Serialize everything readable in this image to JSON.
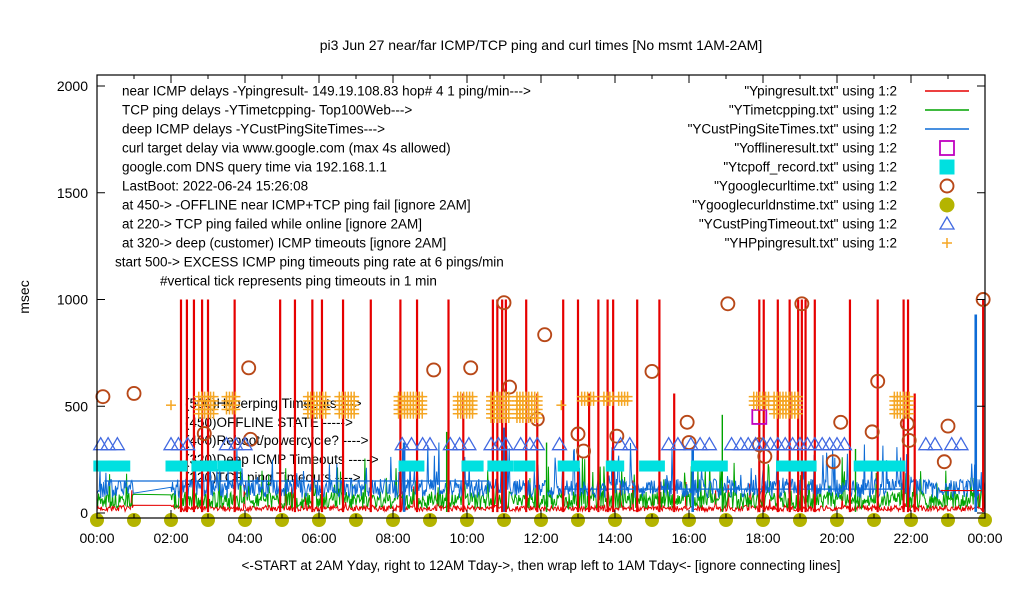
{
  "title": "pi3 Jun 27  near/far ICMP/TCP ping and curl times [No msmt 1AM-2AM]",
  "ylabel": "msec",
  "xlabel": "<-START at 2AM Yday, right to 12AM Tday->, then wrap left to 1AM Tday<- [ignore connecting lines]",
  "colors": {
    "red": "#e60000",
    "green": "#00a400",
    "blue": "#0d6bd6",
    "magenta": "#c000c0",
    "cyan": "#00e0e0",
    "darkorange": "#b84818",
    "olive": "#b4b400",
    "triangle_blue": "#4169e1",
    "plus_orange": "#f5a623",
    "axis": "#000000",
    "background": "#ffffff"
  },
  "chart_data": {
    "type": "line",
    "title": "pi3 Jun 27  near/far ICMP/TCP ping and curl times [No msmt 1AM-2AM]",
    "xlabel": "<-START at 2AM Yday, right to 12AM Tday->, then wrap left to 1AM Tday<- [ignore connecting lines]",
    "ylabel": "msec",
    "xlim_hours": [
      0,
      24
    ],
    "ylim": [
      0,
      2000
    ],
    "yticks": [
      0,
      500,
      1000,
      1500,
      2000
    ],
    "xtick_labels": [
      "00:00",
      "02:00",
      "04:00",
      "06:00",
      "08:00",
      "10:00",
      "12:00",
      "14:00",
      "16:00",
      "18:00",
      "20:00",
      "22:00",
      "00:00"
    ],
    "grid": false,
    "no_measurement_gap_hours": [
      1,
      2
    ],
    "key_rows": [
      {
        "left": "near ICMP delays -Ypingresult- 149.19.108.83 hop# 4 1 ping/min--->",
        "right": "\"Ypingresult.txt\" using 1:2",
        "marker": "red-line",
        "indent": 122
      },
      {
        "left": "TCP ping delays -YTimetcpping- Top100Web--->",
        "right": "\"YTimetcpping.txt\" using 1:2",
        "marker": "green-line",
        "indent": 122
      },
      {
        "left": "deep ICMP delays -YCustPingSiteTimes--->",
        "right": "\"YCustPingSiteTimes.txt\" using 1:2",
        "marker": "blue-line",
        "indent": 122
      },
      {
        "left": "curl target delay via www.google.com (max 4s allowed)",
        "right": "\"Yofflineresult.txt\" using 1:2",
        "marker": "magenta-open-square",
        "indent": 122
      },
      {
        "left": "google.com DNS query time via 192.168.1.1",
        "right": "\"Ytcpoff_record.txt\" using 1:2",
        "marker": "cyan-filled-square",
        "indent": 122
      },
      {
        "left": "LastBoot: 2022-06-24 15:26:08",
        "right": "\"Ygooglecurltime.txt\" using 1:2",
        "marker": "darkorange-open-circle",
        "indent": 122
      },
      {
        "left": "at 450-> -OFFLINE near ICMP+TCP ping fail [ignore 2AM]",
        "right": "\"Ygooglecurldnstime.txt\" using 1:2",
        "marker": "olive-filled-circle",
        "indent": 122
      },
      {
        "left": "at 220-> TCP ping failed while online [ignore 2AM]",
        "right": "\"YCustPingTimeout.txt\" using 1:2",
        "marker": "blue-open-triangle",
        "indent": 122
      },
      {
        "left": "at 320-> deep (customer) ICMP timeouts [ignore 2AM]",
        "right": "\"YHPpingresult.txt\" using 1:2",
        "marker": "orange-plus",
        "indent": 122
      },
      {
        "left": "start 500-> EXCESS ICMP ping timeouts ping rate at 6 pings/min",
        "right": "",
        "marker": "",
        "indent": 115
      },
      {
        "left": "#vertical tick represents ping timeouts in 1 min",
        "right": "",
        "marker": "",
        "indent": 160
      }
    ],
    "inplot_labels": [
      {
        "text": "(500)Hyperping Timeouts --->",
        "v": 510
      },
      {
        "text": "(450)OFFLINE STATE ----->",
        "v": 421
      },
      {
        "text": "(400)Reboot/powercycle? ---->",
        "v": 337
      },
      {
        "text": "(320)Deep ICMP Timeouts ----->",
        "v": 248
      },
      {
        "text": "(220)TCP ping Timeouts ---->",
        "v": 164
      }
    ],
    "series": {
      "near_icmp_red": {
        "label": "Ypingresult.txt",
        "style": "line",
        "color_key": "red",
        "baseline": {
          "mean": 22,
          "jitter": 14,
          "spike_prob": 0.04,
          "spike_max": 130,
          "seed": 7
        },
        "timeout_spikes": [
          [
            2.27,
            1000
          ],
          [
            2.43,
            1000
          ],
          [
            2.62,
            1000
          ],
          [
            2.84,
            1000
          ],
          [
            3.0,
            1000
          ],
          [
            3.72,
            1000
          ],
          [
            4.95,
            1000
          ],
          [
            5.35,
            1000
          ],
          [
            5.82,
            1000
          ],
          [
            6.08,
            1000
          ],
          [
            6.65,
            1000
          ],
          [
            7.4,
            1000
          ],
          [
            8.2,
            1000
          ],
          [
            8.65,
            1000
          ],
          [
            9.5,
            1000
          ],
          [
            9.9,
            560
          ],
          [
            10.7,
            1000
          ],
          [
            10.82,
            1000
          ],
          [
            10.95,
            1000
          ],
          [
            11.05,
            1000
          ],
          [
            11.6,
            1000
          ],
          [
            11.9,
            560
          ],
          [
            12.6,
            1000
          ],
          [
            13.0,
            1000
          ],
          [
            13.3,
            560
          ],
          [
            13.55,
            1000
          ],
          [
            13.8,
            1000
          ],
          [
            13.95,
            1000
          ],
          [
            14.6,
            1000
          ],
          [
            15.2,
            1000
          ],
          [
            15.6,
            560
          ],
          [
            17.9,
            1000
          ],
          [
            18.02,
            1000
          ],
          [
            18.4,
            1000
          ],
          [
            18.72,
            1000
          ],
          [
            18.95,
            1000
          ],
          [
            19.05,
            1000
          ],
          [
            19.15,
            1000
          ],
          [
            19.4,
            1000
          ],
          [
            20.35,
            1000
          ],
          [
            21.1,
            1000
          ],
          [
            21.8,
            1000
          ],
          [
            21.92,
            1000
          ],
          [
            22.1,
            560
          ],
          [
            23.95,
            1000
          ]
        ],
        "flat_segments": [
          [
            22.8,
            23.9,
            105
          ]
        ]
      },
      "tcp_ping_green": {
        "label": "YTimetcpping.txt",
        "style": "line",
        "color_key": "green",
        "baseline": {
          "mean": 60,
          "jitter": 40,
          "spike_prob": 0.1,
          "spike_max": 200,
          "seed": 13
        },
        "extra_spikes": [
          [
            5.35,
            400
          ],
          [
            9.45,
            380
          ],
          [
            12.15,
            330
          ],
          [
            16.9,
            460
          ],
          [
            20.5,
            300
          ]
        ]
      },
      "deep_icmp_blue": {
        "label": "YCustPingSiteTimes.txt",
        "style": "line",
        "color_key": "blue",
        "baseline": {
          "mean": 115,
          "jitter": 45,
          "spike_prob": 0.1,
          "spike_max": 180,
          "seed": 29
        },
        "flat_segments": [
          [
            0.2,
            10.6,
            150
          ],
          [
            12.6,
            21.9,
            112
          ]
        ],
        "extra_spikes": [
          [
            8.3,
            330
          ],
          [
            11.0,
            400
          ],
          [
            16.1,
            300
          ],
          [
            23.75,
            930
          ]
        ]
      },
      "curl_offline_magenta": {
        "label": "Yofflineresult.txt",
        "style": "open-square",
        "color_key": "magenta",
        "value": 450,
        "points": [
          [
            17.9,
            450
          ]
        ]
      },
      "tcp_offline_cyan": {
        "label": "Ytcpoff_record.txt",
        "style": "filled-square",
        "color_key": "cyan",
        "value": 220,
        "ranges": [
          [
            0.05,
            0.3
          ],
          [
            0.45,
            0.75
          ],
          [
            2.0,
            2.3
          ],
          [
            2.7,
            3.1
          ],
          [
            3.4,
            3.75
          ],
          [
            8.3,
            8.7
          ],
          [
            10.0,
            10.3
          ],
          [
            10.7,
            11.1
          ],
          [
            11.4,
            11.7
          ],
          [
            12.6,
            12.9
          ],
          [
            13.9,
            14.1
          ],
          [
            14.8,
            15.2
          ],
          [
            16.2,
            16.9
          ],
          [
            18.5,
            19.3
          ],
          [
            20.6,
            21.3
          ],
          [
            21.4,
            21.7
          ]
        ]
      },
      "curl_time_circles": {
        "label": "Ygooglecurltime.txt",
        "style": "open-circle",
        "color_key": "darkorange",
        "points": [
          [
            0.16,
            545
          ],
          [
            1.0,
            560
          ],
          [
            2.9,
            372
          ],
          [
            4.1,
            680
          ],
          [
            4.15,
            345
          ],
          [
            9.1,
            670
          ],
          [
            10.1,
            680
          ],
          [
            11.0,
            985
          ],
          [
            11.15,
            590
          ],
          [
            11.9,
            440
          ],
          [
            12.1,
            835
          ],
          [
            13.0,
            370
          ],
          [
            13.15,
            290
          ],
          [
            14.05,
            360
          ],
          [
            15.0,
            663
          ],
          [
            15.95,
            425
          ],
          [
            16.0,
            330
          ],
          [
            17.05,
            980
          ],
          [
            17.9,
            320
          ],
          [
            18.05,
            265
          ],
          [
            19.05,
            980
          ],
          [
            19.9,
            240
          ],
          [
            20.1,
            425
          ],
          [
            20.95,
            380
          ],
          [
            21.1,
            617
          ],
          [
            21.9,
            418
          ],
          [
            21.95,
            340
          ],
          [
            22.9,
            240
          ],
          [
            23.0,
            407
          ],
          [
            23.95,
            1000
          ]
        ]
      },
      "dns_time_olive": {
        "label": "Ygooglecurldnstime.txt",
        "style": "filled-circle",
        "color_key": "olive",
        "value": 0,
        "hours": [
          0,
          1,
          2,
          3,
          4,
          5,
          6,
          7,
          8,
          9,
          10,
          11,
          12,
          13,
          14,
          15,
          16,
          17,
          18,
          19,
          20,
          21,
          22,
          23,
          24
        ]
      },
      "cust_ping_timeout_triangles": {
        "label": "YCustPingTimeout.txt",
        "style": "open-triangle",
        "color_key": "triangle_blue",
        "value": 320,
        "times": [
          0.1,
          0.3,
          0.55,
          2.0,
          2.2,
          2.45,
          3.5,
          3.75,
          4.0,
          8.25,
          8.5,
          8.8,
          9.0,
          9.55,
          9.8,
          10.05,
          10.65,
          10.85,
          11.05,
          11.45,
          11.7,
          11.9,
          12.5,
          14.15,
          14.4,
          15.45,
          15.7,
          16.05,
          16.3,
          16.55,
          17.15,
          17.4,
          17.6,
          17.8,
          18.0,
          18.2,
          18.4,
          18.6,
          18.8,
          19.0,
          19.2,
          19.4,
          19.6,
          19.8,
          20.0,
          20.2,
          22.4,
          22.65,
          23.1,
          23.35
        ]
      },
      "hyperping_plus": {
        "label": "YHPpingresult.txt",
        "style": "plus",
        "color_key": "plus_orange",
        "value": 500,
        "clusters": [
          [
            2.0,
            2.05,
            1
          ],
          [
            2.75,
            3.15,
            5
          ],
          [
            3.5,
            3.8,
            4
          ],
          [
            5.7,
            6.2,
            5
          ],
          [
            6.55,
            7.0,
            5
          ],
          [
            8.15,
            8.85,
            5
          ],
          [
            9.75,
            10.2,
            5
          ],
          [
            10.65,
            11.15,
            6
          ],
          [
            11.35,
            11.95,
            6
          ],
          [
            12.55,
            12.6,
            1
          ],
          [
            13.1,
            13.45,
            2
          ],
          [
            13.7,
            13.95,
            2
          ],
          [
            14.1,
            14.35,
            2
          ],
          [
            17.75,
            18.15,
            3
          ],
          [
            18.3,
            19.0,
            5
          ],
          [
            21.55,
            21.95,
            5
          ]
        ]
      }
    }
  }
}
